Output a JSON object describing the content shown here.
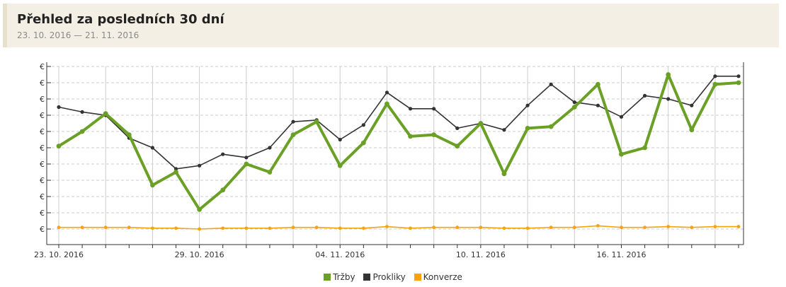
{
  "header": {
    "title": "Přehled za posledních 30 dní",
    "subtitle": "23. 10. 2016 — 21. 11. 2016"
  },
  "colors": {
    "trzby": "#6aa025",
    "prokliky": "#333333",
    "konverze": "#f5a30f",
    "grid": "#cccccc",
    "axis": "#333333"
  },
  "chart_data": {
    "type": "line",
    "title": "",
    "xlabel": "",
    "ylabel": "",
    "x": [
      "23. 10. 2016",
      "24. 10. 2016",
      "25. 10. 2016",
      "26. 10. 2016",
      "27. 10. 2016",
      "28. 10. 2016",
      "29. 10. 2016",
      "30. 10. 2016",
      "31. 10. 2016",
      "01. 11. 2016",
      "02. 11. 2016",
      "03. 11. 2016",
      "04. 11. 2016",
      "05. 11. 2016",
      "06. 11. 2016",
      "07. 11. 2016",
      "08. 11. 2016",
      "09. 11. 2016",
      "10. 11. 2016",
      "11. 11. 2016",
      "12. 11. 2016",
      "13. 11. 2016",
      "14. 11. 2016",
      "15. 11. 2016",
      "16. 11. 2016",
      "17. 11. 2016",
      "18. 11. 2016",
      "19. 11. 2016",
      "20. 11. 2016",
      "21. 11. 2016"
    ],
    "x_tick_labels": [
      "23. 10. 2016",
      "29. 10. 2016",
      "04. 11. 2016",
      "10. 11. 2016",
      "16. 11. 2016"
    ],
    "x_tick_indices": [
      0,
      6,
      12,
      18,
      24
    ],
    "y_tick_labels": [
      "€",
      "€",
      "€",
      "€",
      "€",
      "€",
      "€",
      "€",
      "€",
      "€",
      "€"
    ],
    "ylim": [
      0,
      10
    ],
    "grid": true,
    "legend_position": "bottom-center",
    "series": [
      {
        "name": "Tržby",
        "color": "#6aa025",
        "values": [
          5.1,
          6.0,
          7.1,
          5.8,
          2.7,
          3.5,
          1.2,
          2.4,
          4.0,
          3.5,
          5.8,
          6.6,
          3.9,
          5.3,
          7.7,
          5.7,
          5.8,
          5.1,
          6.5,
          3.4,
          6.2,
          6.3,
          7.5,
          8.9,
          4.6,
          5.0,
          9.5,
          6.1,
          8.9,
          9.0
        ]
      },
      {
        "name": "Prokliky",
        "color": "#333333",
        "values": [
          7.5,
          7.2,
          7.0,
          5.6,
          5.0,
          3.7,
          3.9,
          4.6,
          4.4,
          5.0,
          6.6,
          6.7,
          5.5,
          6.4,
          8.4,
          7.4,
          7.4,
          6.2,
          6.5,
          6.1,
          7.6,
          8.9,
          7.8,
          7.6,
          6.9,
          8.2,
          8.0,
          7.6,
          9.4,
          9.4
        ]
      },
      {
        "name": "Konverze",
        "color": "#f5a30f",
        "values": [
          0.1,
          0.1,
          0.1,
          0.1,
          0.05,
          0.05,
          0.0,
          0.05,
          0.05,
          0.05,
          0.1,
          0.1,
          0.05,
          0.05,
          0.15,
          0.05,
          0.1,
          0.1,
          0.1,
          0.05,
          0.05,
          0.1,
          0.1,
          0.2,
          0.1,
          0.1,
          0.15,
          0.1,
          0.15,
          0.15
        ]
      }
    ]
  }
}
